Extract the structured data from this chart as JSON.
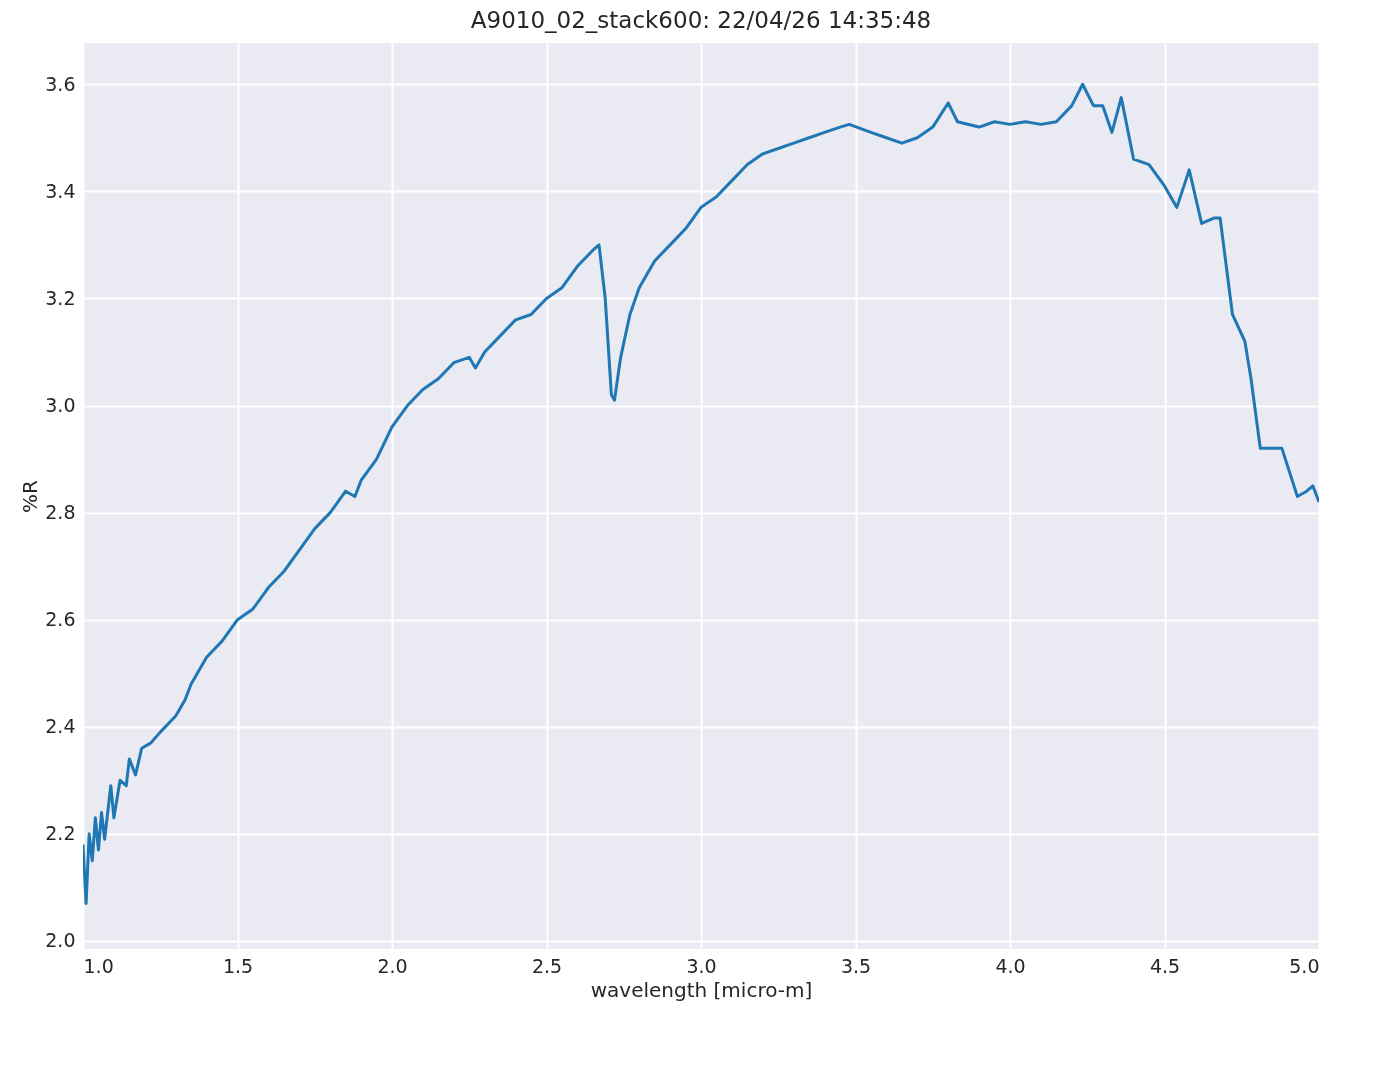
{
  "chart_data": {
    "type": "line",
    "title": "A9010_02_stack600:  22/04/26 14:35:48",
    "xlabel": "wavelength [micro-m]",
    "ylabel": "%R",
    "xlim": [
      1.0,
      5.0
    ],
    "xticks": [
      {
        "value": 1,
        "label": "1.0"
      },
      1.5,
      {
        "value": 2,
        "label": "2.0"
      },
      2.5,
      {
        "value": 3,
        "label": "3.0"
      },
      3.5,
      {
        "value": 4,
        "label": "4.0"
      },
      4.5,
      {
        "value": 5,
        "label": "5.0"
      }
    ],
    "ylim": [
      1.985,
      3.677
    ],
    "yticks": [
      {
        "value": 2,
        "label": "2.0"
      },
      2.2,
      2.4,
      2.6,
      2.8,
      {
        "value": 3,
        "label": "3.0"
      },
      3.2,
      3.4,
      3.6
    ],
    "grid": true,
    "line_style": "solid",
    "x": [
      1.0,
      1.01,
      1.02,
      1.03,
      1.04,
      1.05,
      1.06,
      1.07,
      1.09,
      1.1,
      1.12,
      1.14,
      1.15,
      1.17,
      1.19,
      1.22,
      1.25,
      1.3,
      1.33,
      1.35,
      1.4,
      1.45,
      1.5,
      1.55,
      1.6,
      1.65,
      1.7,
      1.75,
      1.8,
      1.85,
      1.88,
      1.9,
      1.95,
      2.0,
      2.05,
      2.1,
      2.15,
      2.2,
      2.25,
      2.27,
      2.3,
      2.35,
      2.4,
      2.45,
      2.5,
      2.55,
      2.6,
      2.65,
      2.67,
      2.69,
      2.71,
      2.72,
      2.74,
      2.77,
      2.8,
      2.85,
      2.9,
      2.95,
      3.0,
      3.05,
      3.1,
      3.15,
      3.2,
      3.25,
      3.3,
      3.35,
      3.4,
      3.45,
      3.48,
      3.55,
      3.6,
      3.65,
      3.7,
      3.75,
      3.8,
      3.83,
      3.9,
      3.95,
      4.0,
      4.05,
      4.1,
      4.15,
      4.2,
      4.235,
      4.27,
      4.3,
      4.33,
      4.36,
      4.4,
      4.45,
      4.5,
      4.54,
      4.58,
      4.62,
      4.66,
      4.68,
      4.72,
      4.76,
      4.78,
      4.81,
      4.85,
      4.88,
      4.93,
      4.96,
      4.98,
      5.0
    ],
    "series": [
      {
        "color": "#1f77b4",
        "values": [
          2.18,
          2.07,
          2.2,
          2.15,
          2.23,
          2.17,
          2.24,
          2.19,
          2.29,
          2.23,
          2.3,
          2.29,
          2.34,
          2.31,
          2.36,
          2.37,
          2.39,
          2.42,
          2.45,
          2.48,
          2.53,
          2.56,
          2.6,
          2.62,
          2.66,
          2.69,
          2.73,
          2.77,
          2.8,
          2.84,
          2.83,
          2.86,
          2.9,
          2.96,
          3.0,
          3.03,
          3.05,
          3.08,
          3.09,
          3.07,
          3.1,
          3.13,
          3.16,
          3.17,
          3.2,
          3.22,
          3.26,
          3.29,
          3.3,
          3.2,
          3.02,
          3.01,
          3.09,
          3.17,
          3.22,
          3.27,
          3.3,
          3.33,
          3.37,
          3.39,
          3.42,
          3.45,
          3.47,
          3.48,
          3.49,
          3.5,
          3.51,
          3.52,
          3.525,
          3.51,
          3.5,
          3.49,
          3.5,
          3.52,
          3.565,
          3.53,
          3.52,
          3.53,
          3.525,
          3.53,
          3.525,
          3.53,
          3.56,
          3.6,
          3.56,
          3.56,
          3.51,
          3.575,
          3.46,
          3.45,
          3.41,
          3.37,
          3.44,
          3.34,
          3.35,
          3.35,
          3.17,
          3.12,
          3.05,
          2.92,
          2.92,
          2.92,
          2.83,
          2.84,
          2.85,
          2.82
        ]
      }
    ]
  }
}
